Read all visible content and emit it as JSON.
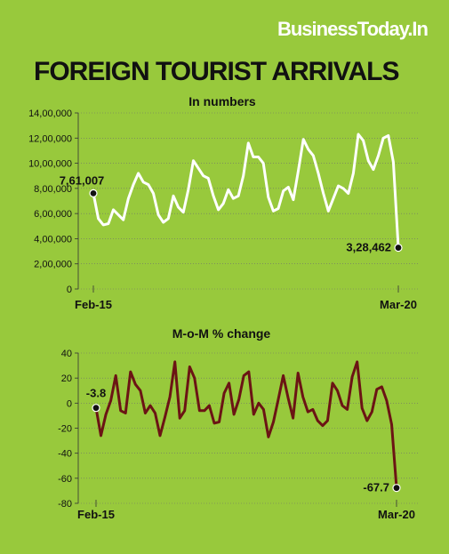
{
  "header": {
    "brand": "BusinessToday.In",
    "title": "FOREIGN TOURIST ARRIVALS"
  },
  "colors": {
    "background": "#98c93c",
    "line_top": "#ffffff",
    "line_bottom": "#6b1414",
    "text": "#111111"
  },
  "chart_data": [
    {
      "type": "line",
      "subtitle": "In numbers",
      "x_first_label": "Feb-15",
      "x_last_label": "Mar-20",
      "yticks": [
        0,
        200000,
        400000,
        600000,
        800000,
        1000000,
        1200000,
        1400000
      ],
      "ytick_labels": [
        "0",
        "2,00,000",
        "4,00,000",
        "6,00,000",
        "8,00,000",
        "10,00,000",
        "12,00,000",
        "14,00,000"
      ],
      "ylim": [
        0,
        1400000
      ],
      "annotations": [
        {
          "index": 0,
          "label": "7,61,007"
        },
        {
          "index": 61,
          "label": "3,28,462"
        }
      ],
      "series": [
        {
          "values": [
            761007,
            560000,
            510000,
            520000,
            630000,
            590000,
            550000,
            720000,
            830000,
            920000,
            850000,
            830000,
            760000,
            590000,
            530000,
            560000,
            740000,
            650000,
            610000,
            790000,
            1020000,
            960000,
            900000,
            880000,
            740000,
            630000,
            680000,
            790000,
            720000,
            740000,
            900000,
            1160000,
            1050000,
            1050000,
            1000000,
            730000,
            620000,
            640000,
            780000,
            810000,
            710000,
            940000,
            1190000,
            1110000,
            1060000,
            920000,
            760000,
            620000,
            720000,
            820000,
            800000,
            760000,
            920000,
            1230000,
            1180000,
            1020000,
            950000,
            1060000,
            1200000,
            1220000,
            1010000,
            328462
          ]
        }
      ]
    },
    {
      "type": "line",
      "subtitle": "M-o-M % change",
      "x_first_label": "Feb-15",
      "x_last_label": "Mar-20",
      "yticks": [
        -80,
        -60,
        -40,
        -20,
        0,
        20,
        40
      ],
      "ytick_labels": [
        "-80",
        "-60",
        "-40",
        "-20",
        "0",
        "20",
        "40"
      ],
      "ylim": [
        -80,
        40
      ],
      "annotations": [
        {
          "index": 0,
          "label": "-3.8"
        },
        {
          "index": 61,
          "label": "-67.7"
        }
      ],
      "series": [
        {
          "values": [
            -3.8,
            -26,
            -9,
            2,
            22,
            -6,
            -8,
            25,
            15,
            10,
            -8,
            -2,
            -8,
            -26,
            -11,
            5,
            33,
            -12,
            -6,
            29,
            20,
            -6,
            -6,
            -2,
            -16,
            -15,
            8,
            16,
            -9,
            3,
            22,
            25,
            -9,
            0,
            -5,
            -27,
            -15,
            3,
            22,
            4,
            -12,
            24,
            5,
            -7,
            -5,
            -14,
            -18,
            -14,
            16,
            10,
            -2,
            -5,
            21,
            33,
            -4,
            -14,
            -7,
            11,
            13,
            2,
            -17,
            -67.7
          ]
        }
      ]
    }
  ]
}
